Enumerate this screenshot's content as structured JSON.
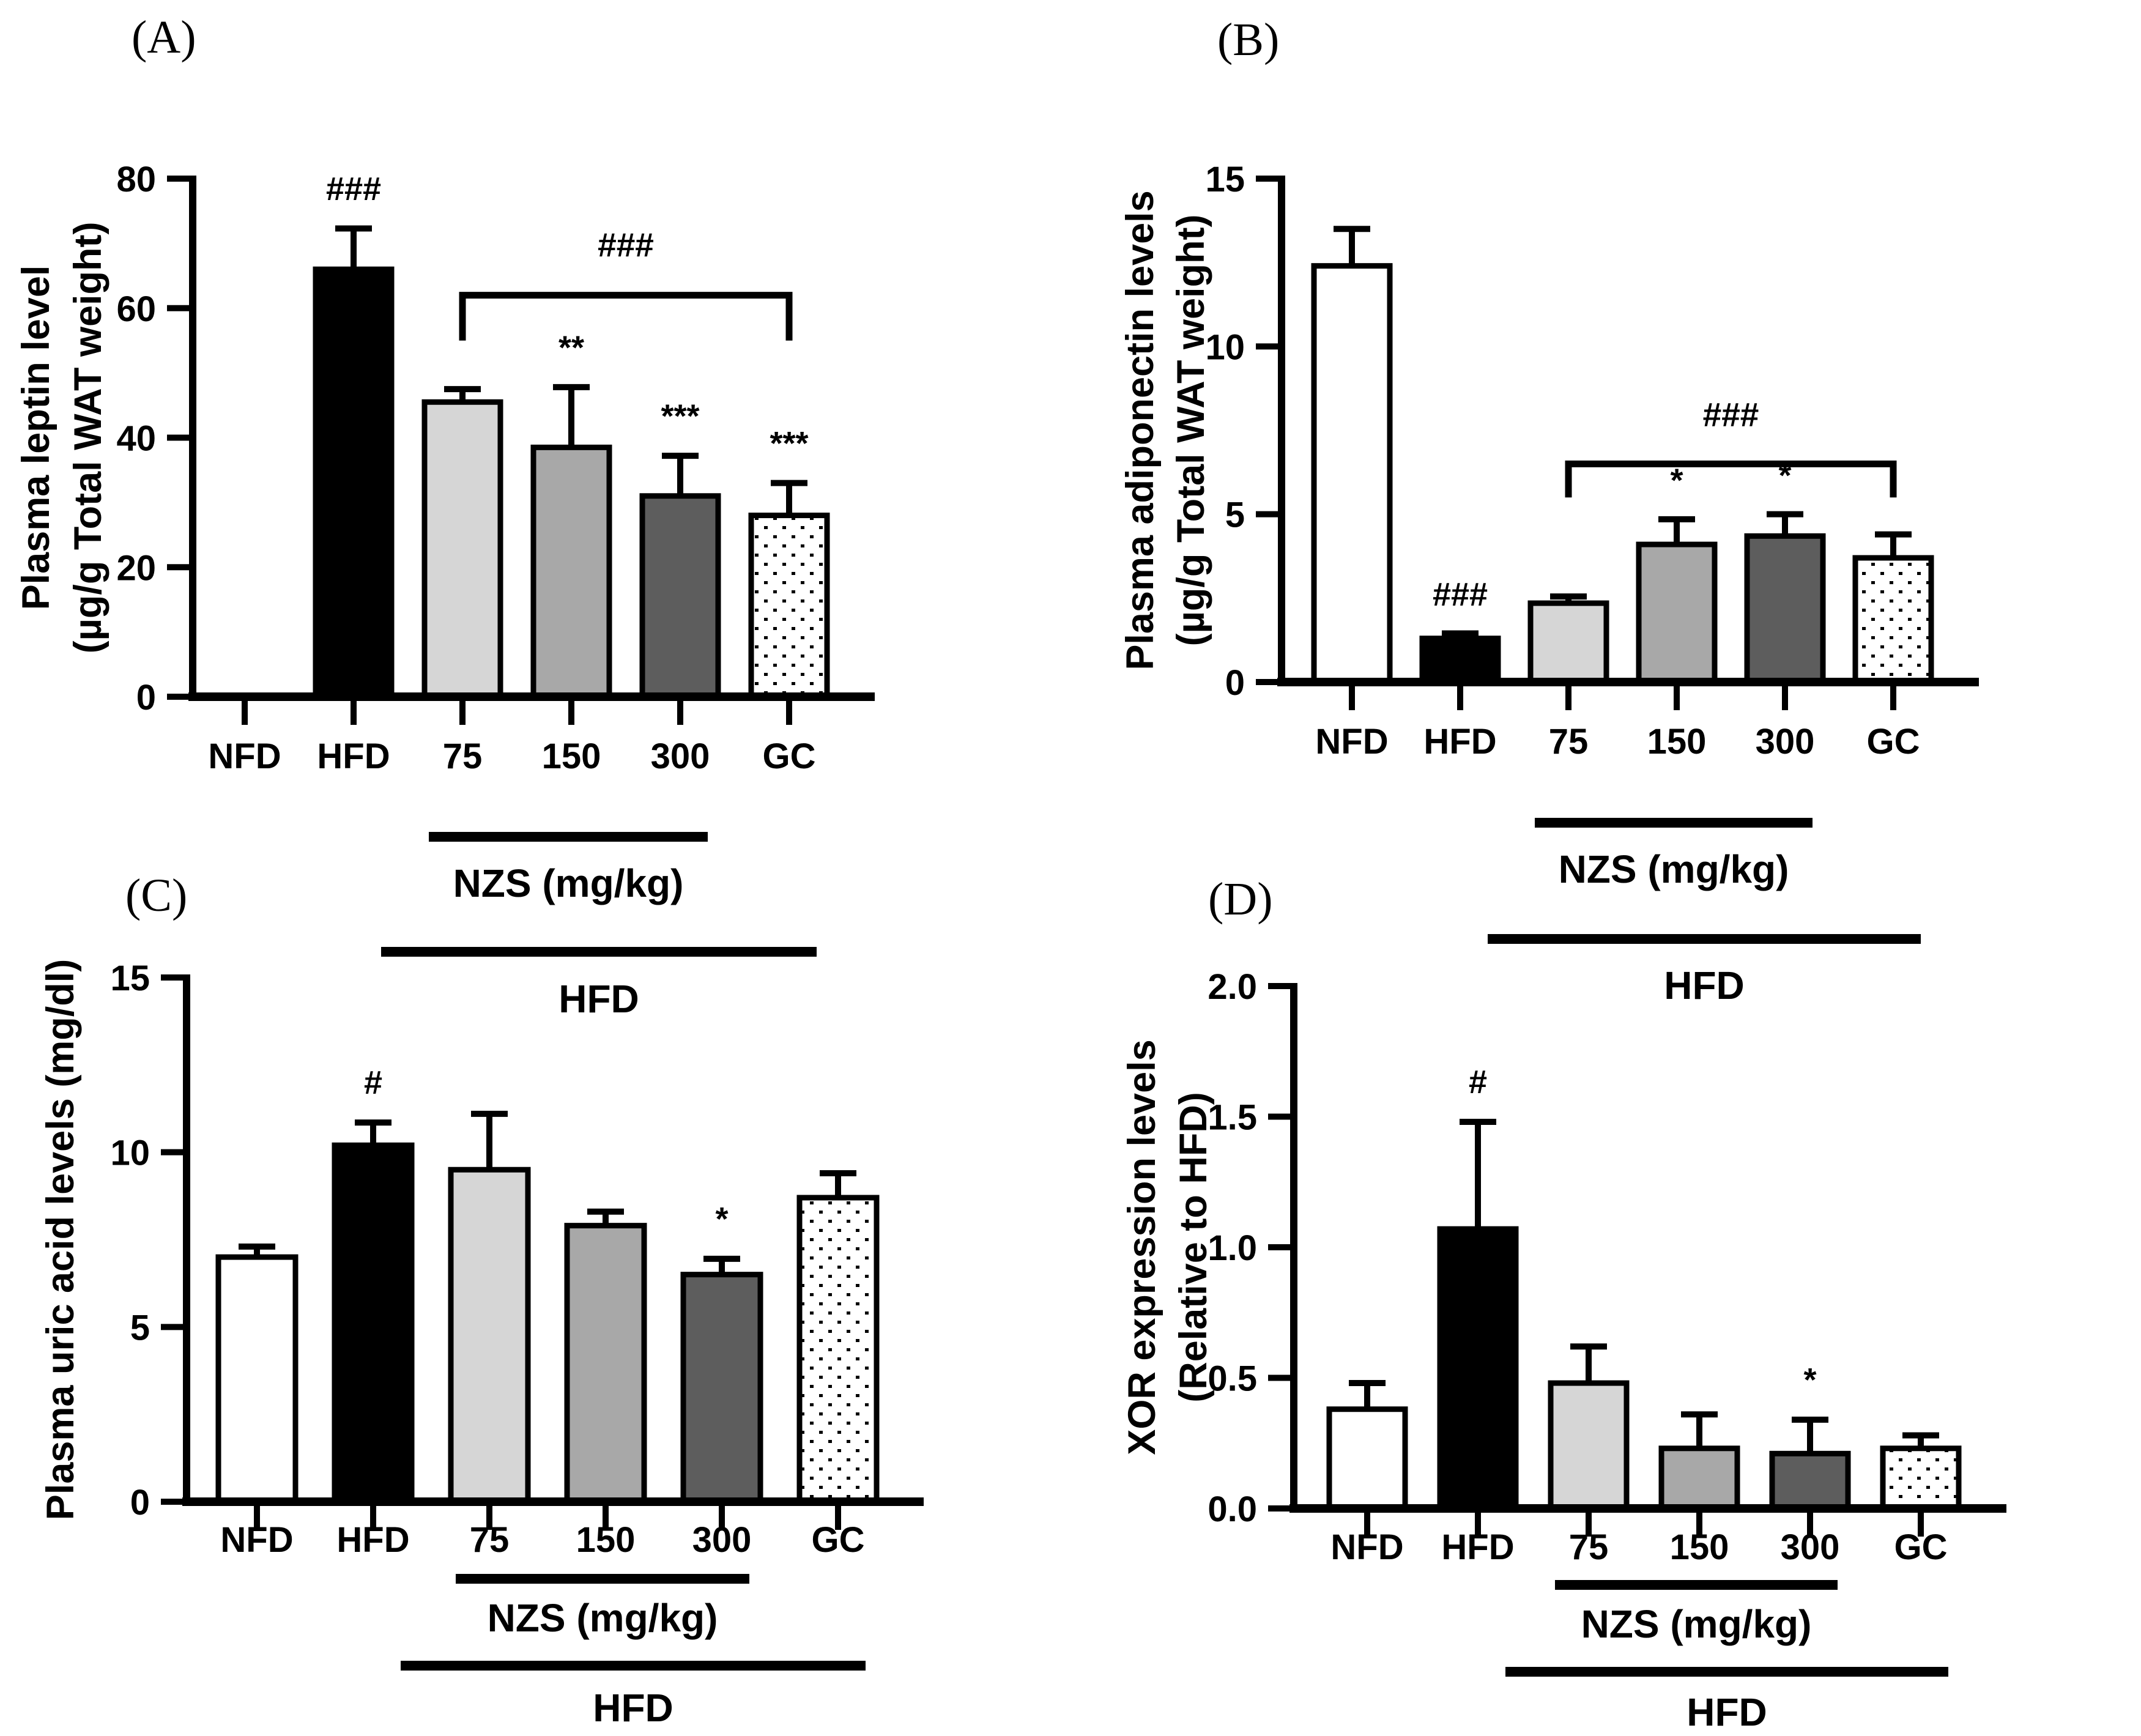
{
  "background": "#ffffff",
  "colors": {
    "axis": "#000000",
    "white_bar": "#ffffff",
    "black_bar": "#000000",
    "lightgray_bar": "#d6d6d6",
    "gray_bar": "#a8a8a8",
    "darkgray_bar": "#5d5d5d",
    "dot_pattern": "#000000"
  },
  "chart_data": [
    {
      "panel_label": "(A)",
      "type": "bar",
      "title": "",
      "ylabel_lines": [
        "Plasma leptin level",
        "(µg/g Total WAT  weight)"
      ],
      "xlabel": "",
      "ylim": [
        0,
        80
      ],
      "yticks": [
        0,
        20,
        40,
        60,
        80
      ],
      "ytick_labels": [
        "0",
        "20",
        "40",
        "60",
        "80"
      ],
      "categories": [
        "NFD",
        "HFD",
        "75",
        "150",
        "300",
        "GC"
      ],
      "values": [
        0,
        66,
        45.5,
        38.5,
        31,
        28
      ],
      "errors": [
        0,
        6.3,
        2,
        9.3,
        6.2,
        5
      ],
      "bar_styles": [
        "white",
        "black",
        "lightgray",
        "gray",
        "darkgray",
        "dotted"
      ],
      "sig_labels": [
        "",
        "###",
        "",
        "**",
        "***",
        "***"
      ],
      "bracket": {
        "from_index": 2,
        "to_index": 5,
        "y": 62,
        "leg": 7,
        "label": "###"
      },
      "group_lines": [
        {
          "from_index": 2,
          "to_index": 4,
          "label": "NZS (mg/kg)"
        },
        {
          "from_index": 1,
          "to_index": 5,
          "label": "HFD"
        }
      ],
      "grid": false,
      "legend": null
    },
    {
      "panel_label": "(B)",
      "type": "bar",
      "title": "",
      "ylabel_lines": [
        "Plasma adiponectin levels",
        "(µg/g Total WAT  weight)"
      ],
      "xlabel": "",
      "ylim": [
        0,
        15
      ],
      "yticks": [
        0,
        5,
        10,
        15
      ],
      "ytick_labels": [
        "0",
        "5",
        "10",
        "15"
      ],
      "categories": [
        "NFD",
        "HFD",
        "75",
        "150",
        "300",
        "GC"
      ],
      "values": [
        12.4,
        1.3,
        2.35,
        4.1,
        4.35,
        3.7
      ],
      "errors": [
        1.1,
        0.15,
        0.2,
        0.75,
        0.65,
        0.7
      ],
      "bar_styles": [
        "white",
        "black",
        "lightgray",
        "gray",
        "darkgray",
        "dotted"
      ],
      "sig_labels": [
        "",
        "###",
        "",
        "*",
        "*",
        ""
      ],
      "bracket": {
        "from_index": 2,
        "to_index": 5,
        "y": 6.5,
        "leg": 1.0,
        "label": "###"
      },
      "group_lines": [
        {
          "from_index": 2,
          "to_index": 4,
          "label": "NZS (mg/kg)"
        },
        {
          "from_index": 1,
          "to_index": 5,
          "label": "HFD"
        }
      ],
      "grid": false,
      "legend": null
    },
    {
      "panel_label": "(C)",
      "type": "bar",
      "title": "",
      "ylabel_lines": [
        "Plasma uric acid levels (mg/dl)"
      ],
      "xlabel": "",
      "ylim": [
        0,
        15
      ],
      "yticks": [
        0,
        5,
        10,
        15
      ],
      "ytick_labels": [
        "0",
        "5",
        "10",
        "15"
      ],
      "categories": [
        "NFD",
        "HFD",
        "75",
        "150",
        "300",
        "GC"
      ],
      "values": [
        7.0,
        10.2,
        9.5,
        7.9,
        6.5,
        8.7
      ],
      "errors": [
        0.3,
        0.65,
        1.6,
        0.4,
        0.45,
        0.7
      ],
      "bar_styles": [
        "white",
        "black",
        "lightgray",
        "gray",
        "darkgray",
        "dotted"
      ],
      "sig_labels": [
        "",
        "#",
        "",
        "",
        "*",
        ""
      ],
      "bracket": null,
      "group_lines": [
        {
          "from_index": 2,
          "to_index": 4,
          "label": "NZS (mg/kg)"
        },
        {
          "from_index": 1,
          "to_index": 5,
          "label": "HFD"
        }
      ],
      "grid": false,
      "legend": null
    },
    {
      "panel_label": "(D)",
      "type": "bar",
      "title": "",
      "ylabel_lines": [
        "XOR  expression levels",
        "(Relative to HFD)"
      ],
      "xlabel": "",
      "ylim": [
        0,
        2
      ],
      "yticks": [
        0,
        0.5,
        1,
        1.5,
        2
      ],
      "ytick_labels": [
        "0.0",
        "0.5",
        "1.0",
        "1.5",
        "2.0"
      ],
      "categories": [
        "NFD",
        "HFD",
        "75",
        "150",
        "300",
        "GC"
      ],
      "values": [
        0.38,
        1.07,
        0.48,
        0.23,
        0.21,
        0.23
      ],
      "errors": [
        0.1,
        0.41,
        0.14,
        0.13,
        0.13,
        0.05
      ],
      "bar_styles": [
        "white",
        "black",
        "lightgray",
        "gray",
        "darkgray",
        "dotted"
      ],
      "sig_labels": [
        "",
        "#",
        "",
        "",
        "*",
        ""
      ],
      "bracket": null,
      "group_lines": [
        {
          "from_index": 2,
          "to_index": 4,
          "label": "NZS (mg/kg)"
        },
        {
          "from_index": 1,
          "to_index": 5,
          "label": "HFD"
        }
      ],
      "grid": false,
      "legend": null
    }
  ]
}
